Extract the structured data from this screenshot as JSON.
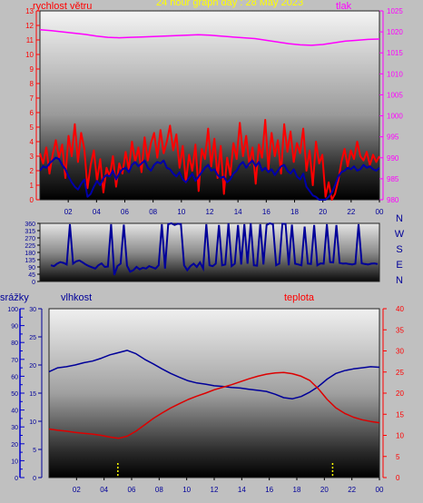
{
  "title": "24 hour graph day : 28 May 2023",
  "colors": {
    "background": "#c0c0c0",
    "title": "#ffff00",
    "wind_gust": "#ff0000",
    "wind_avg": "#0000aa",
    "pressure": "#ff00ff",
    "direction": "#000099",
    "humidity": "#000099",
    "temperature": "#dd0000",
    "rain": "#ffff00",
    "rain_axis": "#0000cc"
  },
  "chart_data": [
    {
      "type": "line",
      "name": "wind-pressure",
      "left_label": "rychlost větru",
      "right_label": "tlak",
      "x_ticks": [
        "02",
        "04",
        "06",
        "08",
        "10",
        "12",
        "14",
        "16",
        "18",
        "20",
        "22",
        "00"
      ],
      "left_axis": {
        "ylim": [
          0,
          13
        ],
        "ticks": [
          "0",
          "1",
          "2",
          "3",
          "4",
          "5",
          "6",
          "7",
          "8",
          "9",
          "10",
          "11",
          "12",
          "13"
        ]
      },
      "right_axis": {
        "ylim": [
          980,
          1025
        ],
        "ticks": [
          "980",
          "985",
          "990",
          "995",
          "1000",
          "1005",
          "1010",
          "1015",
          "1020",
          "1025"
        ]
      },
      "series": [
        {
          "role": "gust",
          "axis": "left",
          "values": [
            3.2,
            2.5,
            3.6,
            1.8,
            3.1,
            4.1,
            2.9,
            3.8,
            1.5,
            4.4,
            3.0,
            5.2,
            2.6,
            4.6,
            3.5,
            0.8,
            2.4,
            3.4,
            1.3,
            2.8,
            0.5,
            2.2,
            1.6,
            3.0,
            0.9,
            2.5,
            1.8,
            3.3,
            2.1,
            4.0,
            2.6,
            3.6,
            1.9,
            4.3,
            2.7,
            3.9,
            4.6,
            2.9,
            4.8,
            3.2,
            4.0,
            5.1,
            3.4,
            4.5,
            2.2,
            3.7,
            1.2,
            3.1,
            2.0,
            3.8,
            0.6,
            3.5,
            2.8,
            4.9,
            2.3,
            4.2,
            1.5,
            3.7,
            0.4,
            2.9,
            1.7,
            3.9,
            2.8,
            5.3,
            3.0,
            4.4,
            2.4,
            3.6,
            1.1,
            3.8,
            2.9,
            5.5,
            2.1,
            4.6,
            3.0,
            4.1,
            1.8,
            5.2,
            3.3,
            4.7,
            2.6,
            3.9,
            3.2,
            4.9,
            2.0,
            3.4,
            1.0,
            4.0,
            2.5,
            3.1,
            0.2,
            1.2,
            0.0,
            0.4,
            1.3,
            2.6,
            3.5,
            2.3,
            3.4,
            2.8,
            4.0,
            3.0,
            2.7,
            3.3,
            2.4,
            3.1,
            2.6,
            3.0
          ]
        },
        {
          "role": "average",
          "axis": "left",
          "values": [
            2.0,
            2.3,
            2.2,
            2.5,
            2.7,
            2.9,
            2.8,
            2.4,
            2.1,
            1.6,
            1.2,
            0.9,
            0.7,
            1.1,
            1.4,
            0.2,
            0.4,
            0.9,
            1.3,
            1.0,
            1.5,
            1.7,
            1.6,
            2.0,
            1.4,
            1.8,
            2.1,
            2.2,
            1.9,
            2.4,
            2.6,
            2.3,
            2.5,
            2.7,
            2.2,
            2.0,
            2.4,
            2.6,
            2.5,
            2.7,
            2.2,
            2.1,
            1.8,
            1.6,
            1.9,
            1.4,
            1.2,
            1.5,
            1.8,
            1.3,
            1.6,
            1.9,
            2.2,
            2.4,
            2.0,
            2.1,
            1.7,
            1.5,
            1.6,
            1.2,
            1.4,
            1.8,
            2.0,
            2.4,
            2.6,
            2.2,
            2.5,
            2.7,
            2.3,
            2.6,
            2.0,
            2.2,
            1.9,
            2.1,
            1.7,
            2.0,
            2.3,
            2.4,
            2.0,
            1.8,
            2.1,
            1.6,
            1.4,
            1.8,
            0.9,
            0.6,
            0.3,
            0.2,
            0.0,
            0.0,
            0.0,
            0.2,
            0.5,
            1.0,
            1.6,
            1.9,
            2.0,
            2.2,
            2.1,
            2.3,
            2.0,
            2.1,
            2.4,
            2.2,
            2.3,
            2.1,
            2.0,
            2.2
          ]
        },
        {
          "role": "pressure",
          "axis": "right",
          "values": [
            1020.5,
            1020.3,
            1020.0,
            1019.7,
            1019.4,
            1019.0,
            1018.7,
            1018.6,
            1018.7,
            1018.8,
            1018.9,
            1019.0,
            1019.1,
            1019.2,
            1019.3,
            1019.2,
            1019.0,
            1018.8,
            1018.6,
            1018.4,
            1018.0,
            1017.6,
            1017.2,
            1016.9,
            1016.8,
            1017.0,
            1017.4,
            1017.8,
            1018.0,
            1018.2,
            1018.3
          ]
        }
      ]
    },
    {
      "type": "line",
      "name": "wind-direction",
      "ylim": [
        0,
        360
      ],
      "y_ticks": [
        "0",
        "45",
        "90",
        "135",
        "180",
        "225",
        "270",
        "315",
        "360"
      ],
      "compass": [
        "N",
        "W",
        "S",
        "E",
        "N"
      ],
      "values": [
        100,
        95,
        110,
        120,
        115,
        105,
        355,
        110,
        125,
        130,
        118,
        105,
        95,
        88,
        80,
        100,
        112,
        90,
        92,
        355,
        40,
        95,
        110,
        352,
        98,
        60,
        70,
        90,
        75,
        85,
        80,
        95,
        88,
        80,
        100,
        355,
        80,
        355,
        360,
        350,
        358,
        355,
        100,
        70,
        95,
        110,
        90,
        118,
        80,
        355,
        100,
        95,
        110,
        350,
        100,
        105,
        360,
        95,
        110,
        350,
        105,
        355,
        110,
        360,
        100,
        98,
        355,
        105,
        350,
        360,
        355,
        100,
        110,
        358,
        356,
        100,
        352,
        110,
        105,
        100,
        340,
        110,
        108,
        350,
        100,
        112,
        110,
        355,
        120,
        118,
        350,
        115,
        110,
        112,
        108,
        105,
        110,
        355,
        112,
        108,
        105,
        110,
        112,
        108
      ]
    },
    {
      "type": "line",
      "name": "humidity-temperature-rain",
      "labels": {
        "rain": "srážky",
        "humidity": "vlhkost",
        "temperature": "teplota"
      },
      "x_ticks": [
        "02",
        "04",
        "06",
        "08",
        "10",
        "12",
        "14",
        "16",
        "18",
        "20",
        "22",
        "00"
      ],
      "rain_axis": {
        "ylim": [
          0,
          100
        ],
        "ticks": [
          "0",
          "10",
          "20",
          "30",
          "40",
          "50",
          "60",
          "70",
          "80",
          "90",
          "100"
        ]
      },
      "humidity_axis": {
        "ylim": [
          0,
          30
        ],
        "ticks": [
          "0",
          "5",
          "10",
          "15",
          "20",
          "25",
          "30"
        ]
      },
      "temperature_axis": {
        "ylim": [
          0,
          40
        ],
        "ticks": [
          "0",
          "5",
          "10",
          "15",
          "20",
          "25",
          "30",
          "35",
          "40"
        ]
      },
      "series": [
        {
          "role": "humidity",
          "axis": "humidity",
          "values": [
            18.8,
            19.5,
            19.7,
            20.0,
            20.4,
            20.7,
            21.2,
            21.8,
            22.2,
            22.6,
            22.0,
            21.0,
            20.2,
            19.3,
            18.5,
            17.8,
            17.2,
            16.8,
            16.6,
            16.3,
            16.2,
            16.0,
            15.9,
            15.7,
            15.5,
            15.3,
            14.8,
            14.2,
            14.0,
            14.4,
            15.2,
            16.2,
            17.5,
            18.5,
            19.0,
            19.3,
            19.5,
            19.7,
            19.6
          ]
        },
        {
          "role": "temperature",
          "axis": "temperature",
          "values": [
            11.5,
            11.2,
            11.0,
            10.7,
            10.5,
            10.3,
            10.0,
            9.6,
            9.3,
            9.8,
            11.0,
            12.5,
            14.0,
            15.3,
            16.5,
            17.5,
            18.5,
            19.3,
            20.0,
            20.8,
            21.4,
            22.0,
            22.7,
            23.4,
            24.0,
            24.5,
            24.8,
            24.9,
            24.6,
            24.0,
            23.0,
            21.0,
            18.5,
            16.5,
            15.2,
            14.3,
            13.7,
            13.3,
            13.0
          ]
        },
        {
          "role": "rain",
          "axis": "rain",
          "marker_times": [
            5.0,
            20.6
          ]
        }
      ]
    }
  ]
}
